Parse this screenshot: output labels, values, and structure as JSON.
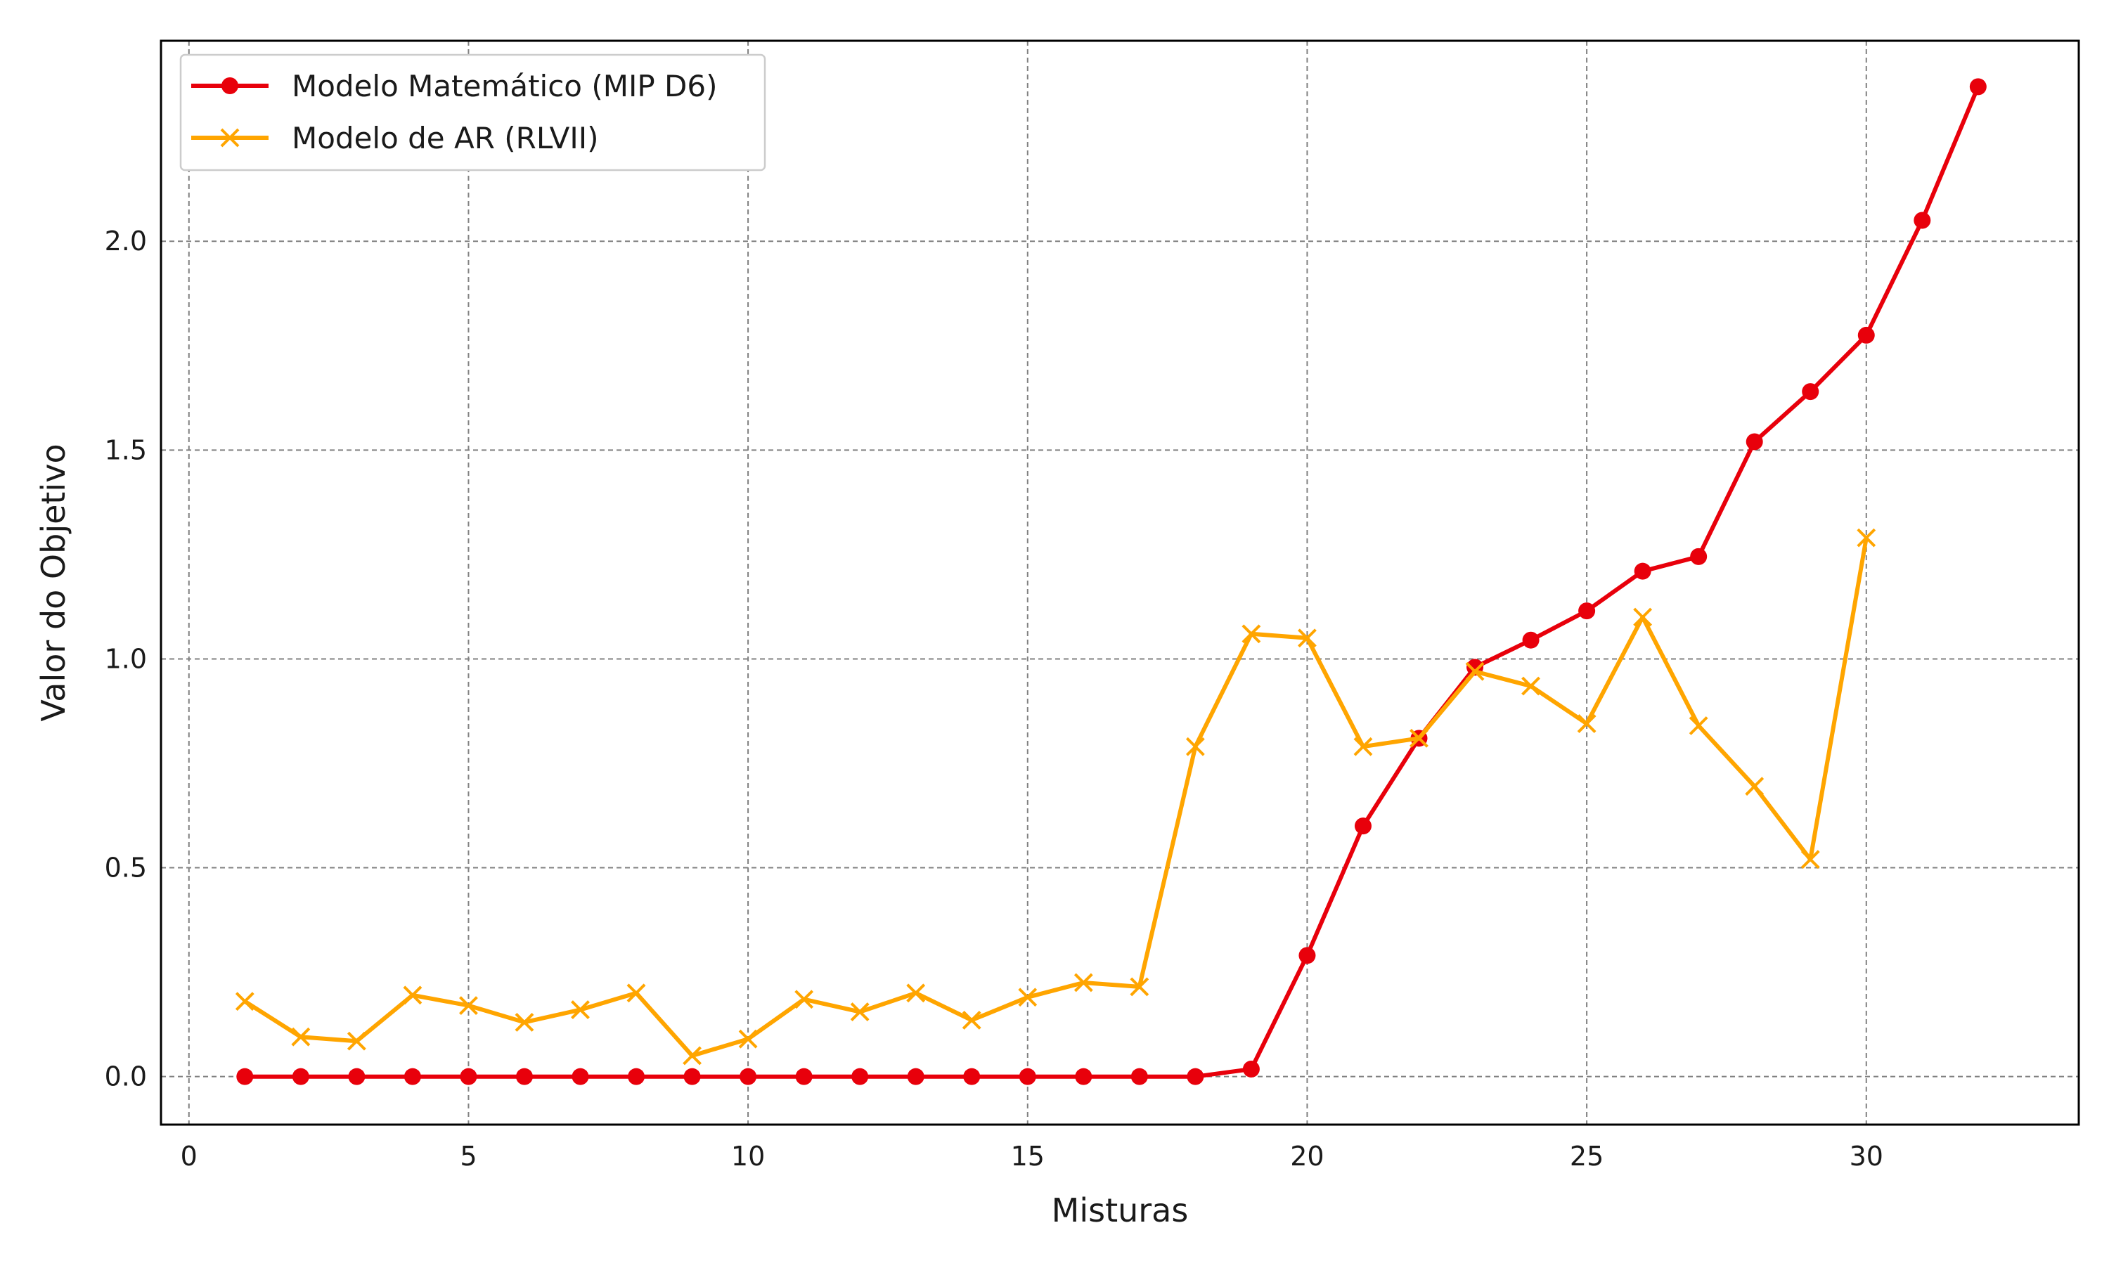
{
  "chart_data": {
    "type": "line",
    "title": "",
    "xlabel": "Misturas",
    "ylabel": "Valor do Objetivo",
    "xlim": [
      -0.5,
      33.8
    ],
    "ylim": [
      -0.115,
      2.48
    ],
    "xticks": [
      0,
      5,
      10,
      15,
      20,
      25,
      30
    ],
    "yticks": [
      0.0,
      0.5,
      1.0,
      1.5,
      2.0
    ],
    "xtick_labels": [
      "0",
      "5",
      "10",
      "15",
      "20",
      "25",
      "30"
    ],
    "ytick_labels": [
      "0.0",
      "0.5",
      "1.0",
      "1.5",
      "2.0"
    ],
    "grid": true,
    "legend_position": "top-left",
    "series": [
      {
        "name": "Modelo Matemático (MIP D6)",
        "color": "#e8000b",
        "marker": "circle",
        "x": [
          1,
          2,
          3,
          4,
          5,
          6,
          7,
          8,
          9,
          10,
          11,
          12,
          13,
          14,
          15,
          16,
          17,
          18,
          19,
          20,
          21,
          22,
          23,
          24,
          25,
          26,
          27,
          28,
          29,
          30,
          31,
          32
        ],
        "y": [
          0,
          0,
          0,
          0,
          0,
          0,
          0,
          0,
          0,
          0,
          0,
          0,
          0,
          0,
          0,
          0,
          0,
          0,
          0.018,
          0.29,
          0.6,
          0.81,
          0.98,
          1.045,
          1.115,
          1.21,
          1.245,
          1.52,
          1.64,
          1.775,
          2.05,
          2.37
        ]
      },
      {
        "name": "Modelo de AR (RLVII)",
        "color": "#ffa500",
        "marker": "x",
        "x": [
          1,
          2,
          3,
          4,
          5,
          6,
          7,
          8,
          9,
          10,
          11,
          12,
          13,
          14,
          15,
          16,
          17,
          18,
          19,
          20,
          21,
          22,
          23,
          24,
          25,
          26,
          27,
          28,
          29,
          30
        ],
        "y": [
          0.18,
          0.095,
          0.085,
          0.195,
          0.17,
          0.13,
          0.16,
          0.2,
          0.05,
          0.09,
          0.185,
          0.155,
          0.2,
          0.135,
          0.19,
          0.225,
          0.215,
          0.79,
          1.06,
          1.05,
          0.79,
          0.81,
          0.97,
          0.935,
          0.845,
          1.1,
          0.84,
          0.695,
          0.52,
          1.29
        ]
      }
    ]
  }
}
